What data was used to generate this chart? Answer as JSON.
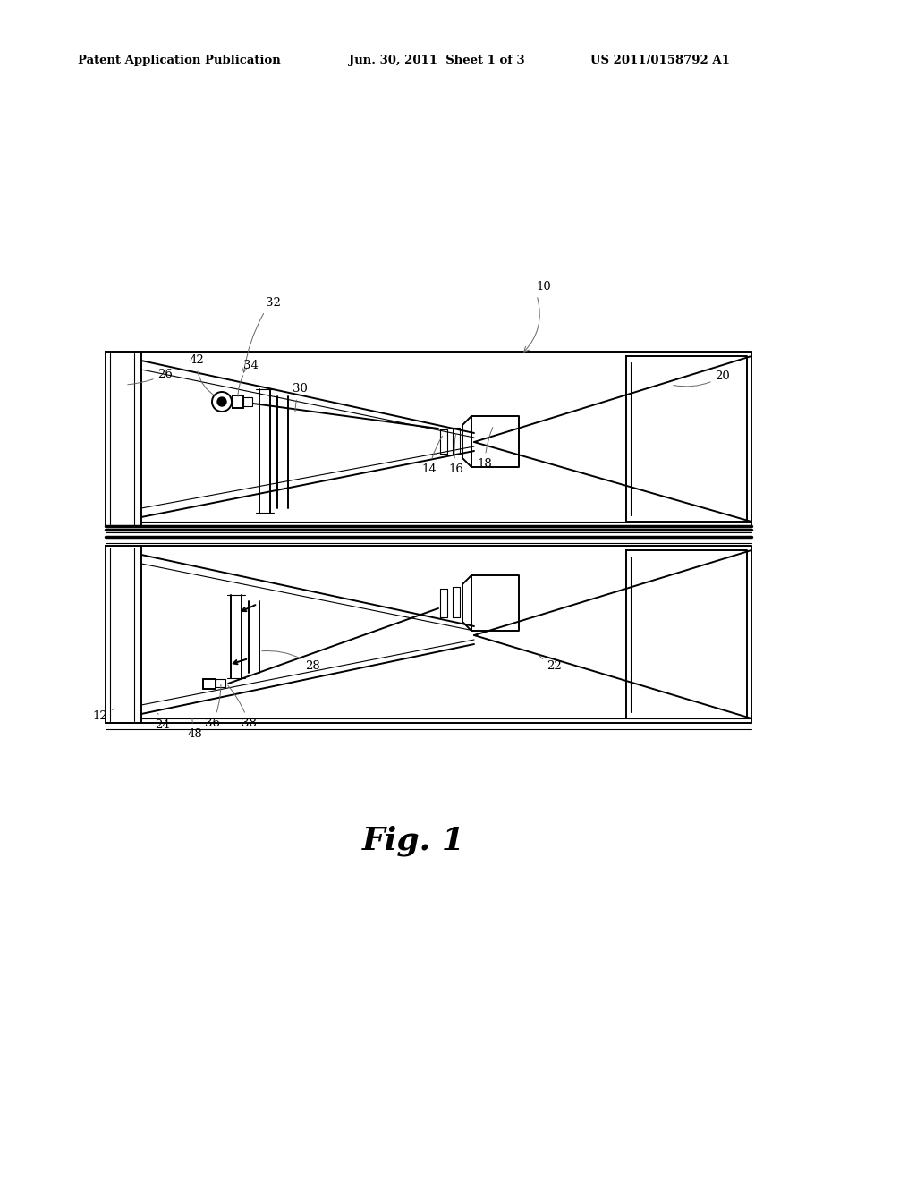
{
  "bg_color": "#ffffff",
  "line_color": "#000000",
  "header_left": "Patent Application Publication",
  "header_mid": "Jun. 30, 2011  Sheet 1 of 3",
  "header_right": "US 2011/0158792 A1",
  "fig_label": "Fig. 1",
  "gray": "#666666",
  "lw": 1.4,
  "lw_thin": 0.8,
  "lw_thick": 2.5
}
